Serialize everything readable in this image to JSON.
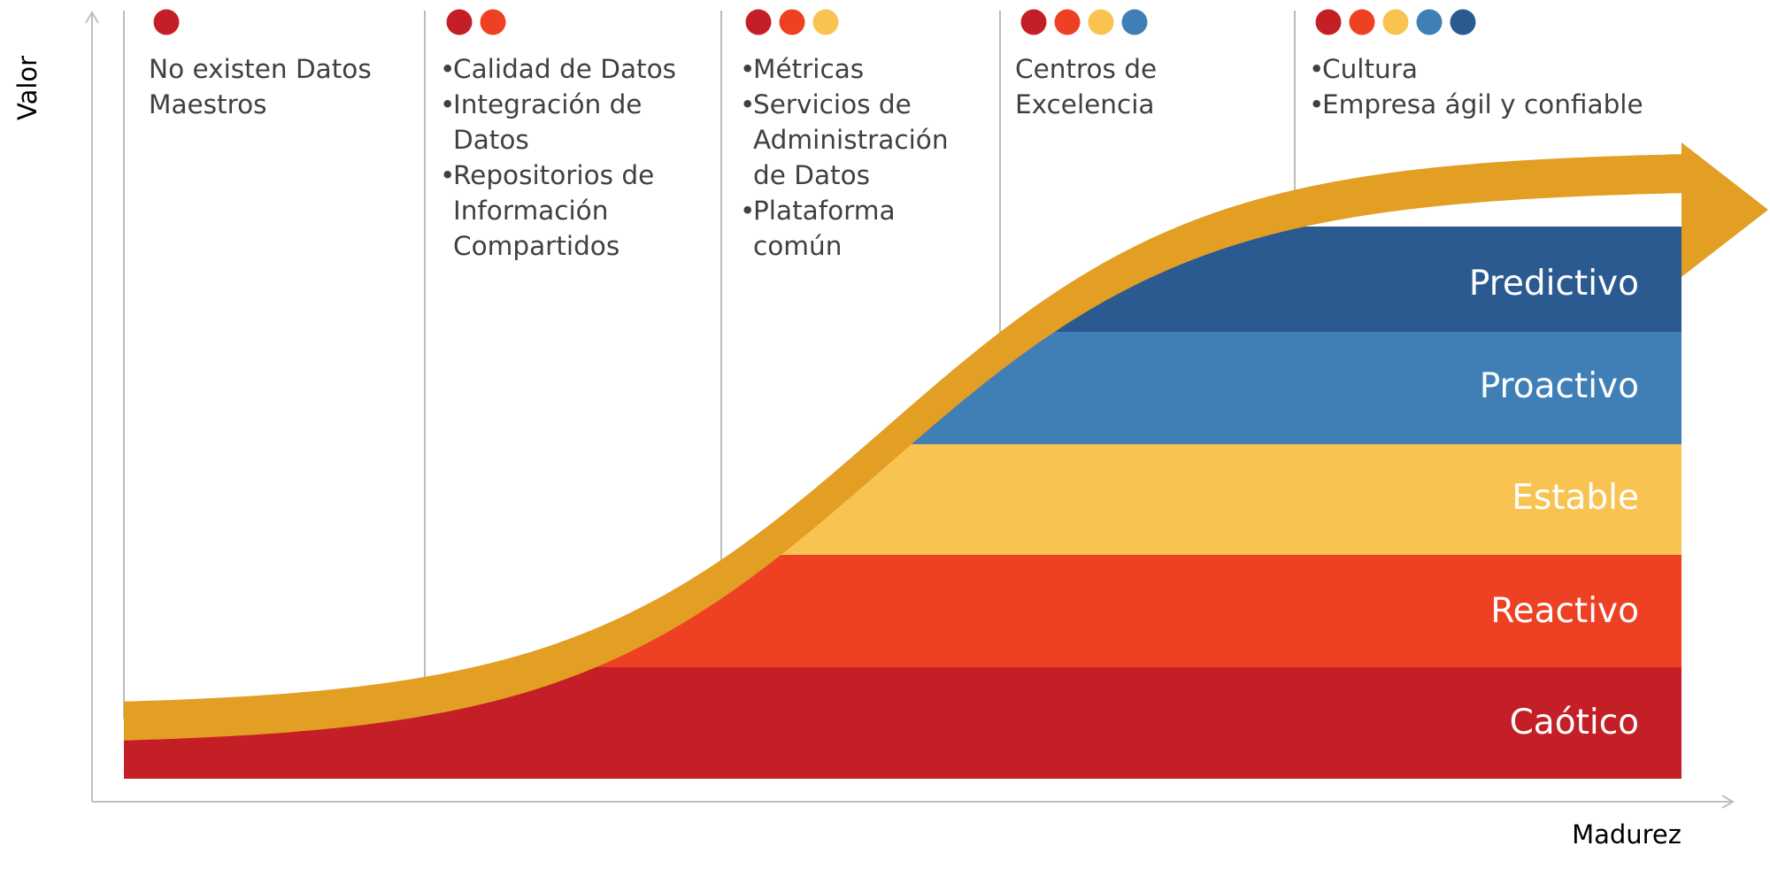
{
  "axes": {
    "y_label": "Valor",
    "x_label": "Madurez"
  },
  "colors": {
    "caotico": "#C41F26",
    "reactivo": "#EE4023",
    "estable": "#F9C352",
    "proactivo": "#3F7FB6",
    "predictivo": "#2B5A91",
    "curve": "#E39E24",
    "axis": "#BFBFBF",
    "divider": "#A6A6A6",
    "text": "#404040"
  },
  "levels": [
    {
      "name": "Predictivo",
      "color": "#2B5A91"
    },
    {
      "name": "Proactivo",
      "color": "#3F7FB6"
    },
    {
      "name": "Estable",
      "color": "#F9C352"
    },
    {
      "name": "Reactivo",
      "color": "#EE4023"
    },
    {
      "name": "Caótico",
      "color": "#C41F26"
    }
  ],
  "stages": [
    {
      "dots": [
        "#C41F26"
      ],
      "text": [
        "No existen Datos",
        "Maestros"
      ],
      "bullets": []
    },
    {
      "dots": [
        "#C41F26",
        "#EE4023"
      ],
      "text": [],
      "bullets": [
        [
          "Calidad de Datos"
        ],
        [
          "Integración de",
          "Datos"
        ],
        [
          "Repositorios de",
          "Información",
          "Compartidos"
        ]
      ]
    },
    {
      "dots": [
        "#C41F26",
        "#EE4023",
        "#F9C352"
      ],
      "text": [],
      "bullets": [
        [
          "Métricas"
        ],
        [
          "Servicios de",
          "Administración",
          "de Datos"
        ],
        [
          "Plataforma",
          "común"
        ]
      ]
    },
    {
      "dots": [
        "#C41F26",
        "#EE4023",
        "#F9C352",
        "#3F7FB6"
      ],
      "text": [
        "Centros de",
        "Excelencia"
      ],
      "bullets": []
    },
    {
      "dots": [
        "#C41F26",
        "#EE4023",
        "#F9C352",
        "#3F7FB6",
        "#2B5A91"
      ],
      "text": [],
      "bullets": [
        [
          "Cultura"
        ],
        [
          "Empresa ágil y confiable"
        ]
      ]
    }
  ]
}
